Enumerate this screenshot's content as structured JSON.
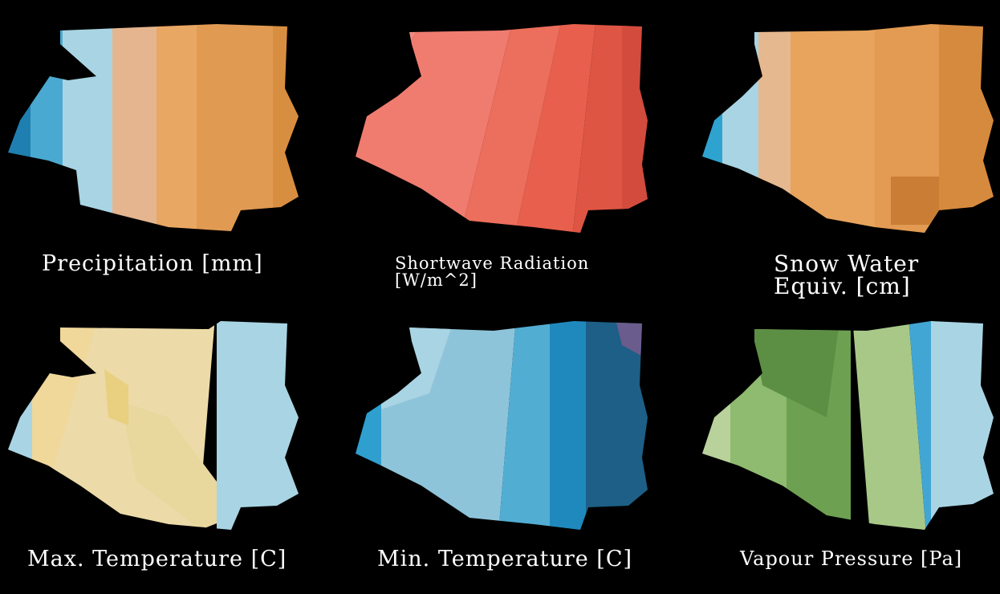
{
  "panels": [
    {
      "title": "Precipitation [mm]",
      "colors": [
        "#1f7fb0",
        "#4aa9d0",
        "#a9d4e3",
        "#e4b58f",
        "#e9a764",
        "#e09a52",
        "#d88e40"
      ]
    },
    {
      "title": "Shortwave Radiation\n[W/m^2]",
      "colors": [
        "#f08a7e",
        "#f07c70",
        "#ec6e5c",
        "#e8604d",
        "#de5544",
        "#d24b3c"
      ]
    },
    {
      "title": "Snow Water\nEquiv. [cm]",
      "colors": [
        "#2fa3cf",
        "#a9d4e3",
        "#e6b88f",
        "#e8a45c",
        "#e39a52",
        "#d68a3e",
        "#c97d35"
      ]
    },
    {
      "title": "Max. Temperature [C]",
      "colors": [
        "#a9d4e3",
        "#f0d79a",
        "#ecdba8",
        "#e8d89e",
        "#e9cf80",
        "#a9d4e3"
      ]
    },
    {
      "title": "Min. Temperature [C]",
      "colors": [
        "#2e9fcf",
        "#8ec4da",
        "#a9d4e3",
        "#52add3",
        "#1f89bd",
        "#1d5f86",
        "#6a5c8c"
      ]
    },
    {
      "title": "Vapour Pressure [Pa]",
      "colors": [
        "#b9d29c",
        "#8fbb70",
        "#6ea052",
        "#5c8f44",
        "#a8c888",
        "#41a6d3",
        "#a9d4e3"
      ]
    }
  ]
}
